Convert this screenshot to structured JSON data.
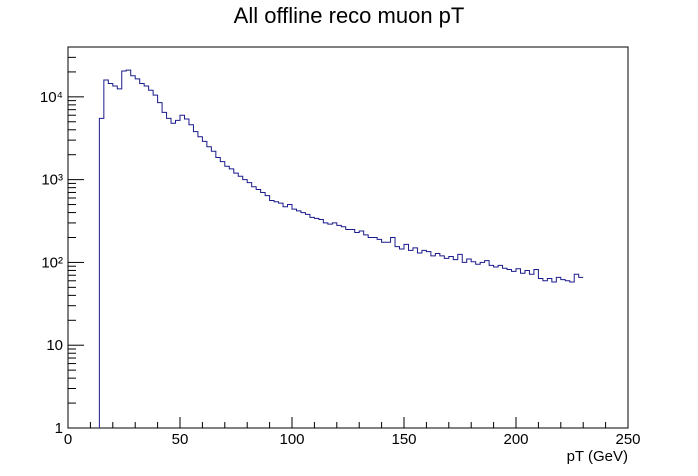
{
  "chart_data": {
    "type": "histogram",
    "title": "All offline reco muon pT",
    "xlabel": "pT (GeV)",
    "ylabel": "",
    "xlim": [
      0,
      250
    ],
    "ylim": [
      1,
      40000
    ],
    "yscale": "log",
    "grid": false,
    "x_ticks": [
      0,
      50,
      100,
      150,
      200,
      250
    ],
    "x_tick_labels": [
      "0",
      "50",
      "100",
      "150",
      "200",
      "250"
    ],
    "y_ticks": [
      1,
      10,
      100,
      1000,
      10000
    ],
    "y_tick_labels": [
      "1",
      "10",
      "10²",
      "10³",
      "10⁴"
    ],
    "line_color": "#1a1a8c",
    "bin_width": 2,
    "bin_start": 14,
    "values": [
      5500,
      16000,
      14500,
      13500,
      12500,
      20500,
      21000,
      18000,
      16500,
      14500,
      13500,
      12000,
      10500,
      8500,
      6500,
      5500,
      4800,
      5200,
      6000,
      5400,
      4600,
      3800,
      3300,
      2900,
      2500,
      2200,
      1850,
      1650,
      1450,
      1350,
      1200,
      1100,
      1000,
      920,
      820,
      760,
      700,
      640,
      560,
      540,
      520,
      470,
      500,
      440,
      420,
      400,
      380,
      350,
      340,
      330,
      300,
      290,
      300,
      280,
      270,
      250,
      250,
      230,
      240,
      215,
      200,
      200,
      190,
      175,
      175,
      200,
      155,
      145,
      165,
      140,
      150,
      130,
      140,
      135,
      120,
      128,
      120,
      112,
      118,
      108,
      125,
      100,
      110,
      102,
      95,
      100,
      105,
      92,
      88,
      92,
      85,
      82,
      78,
      84,
      74,
      80,
      72,
      82,
      64,
      60,
      64,
      58,
      66,
      62,
      60,
      58,
      72,
      66
    ]
  }
}
